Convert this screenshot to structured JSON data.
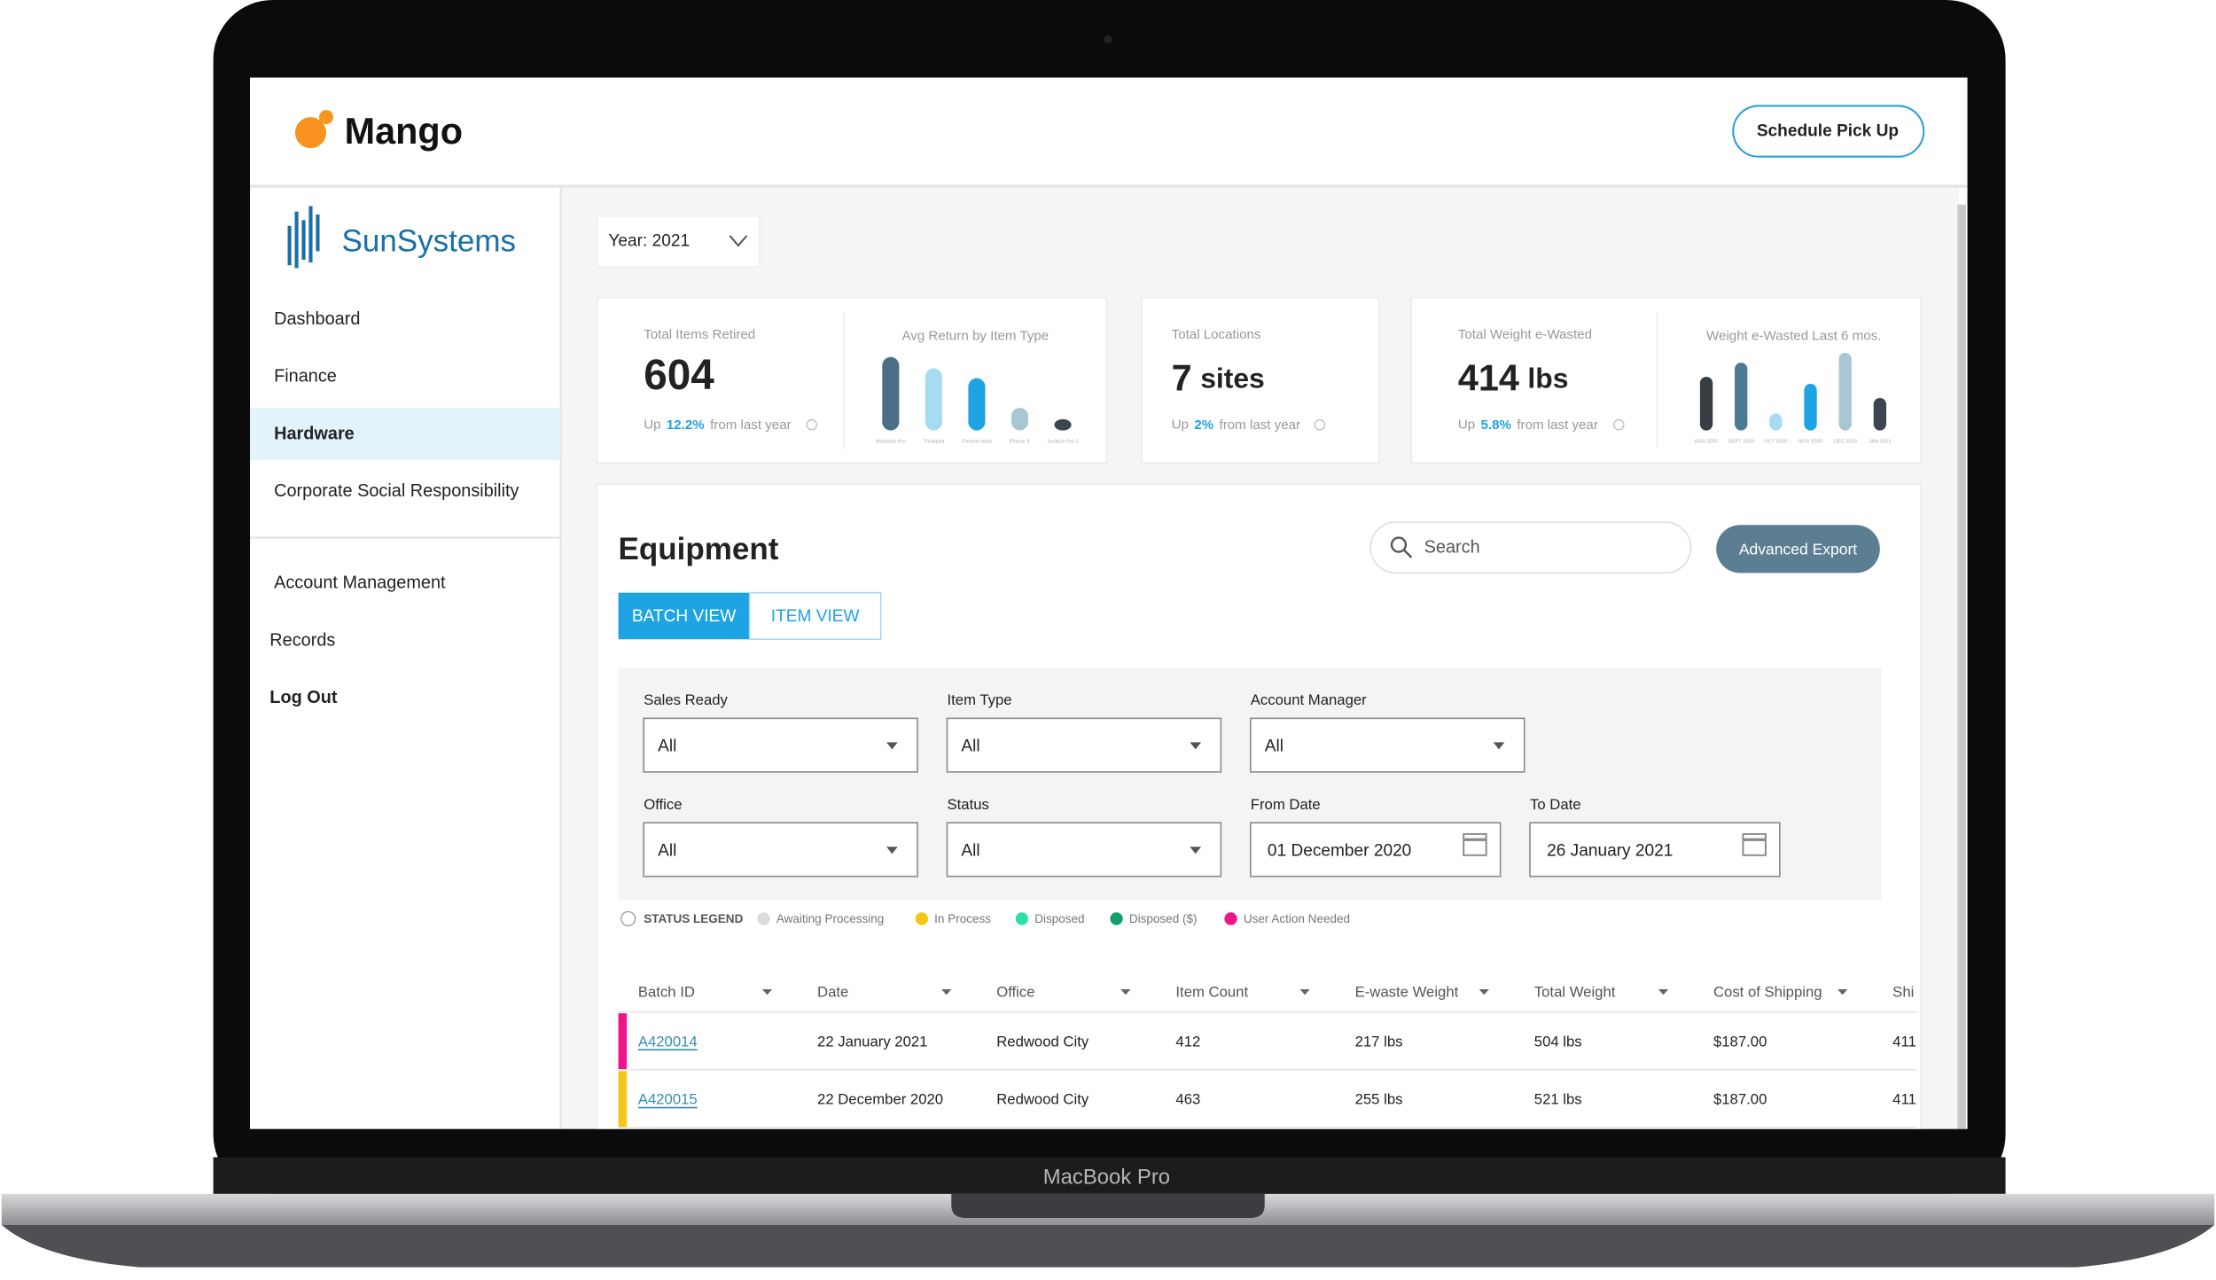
{
  "device": {
    "label": "MacBook Pro"
  },
  "header": {
    "brand": "Mango",
    "button": "Schedule Pick Up"
  },
  "sidebar": {
    "logo": "SunSystems",
    "nav": [
      "Dashboard",
      "Finance",
      "Hardware",
      "Corporate Social Responsibility"
    ],
    "nav2": [
      "Account Management",
      "Records",
      "Log Out"
    ]
  },
  "year_select": "Year: 2021",
  "stats": [
    {
      "label": "Total Items Retired",
      "value": 604,
      "change_prefix": "Up",
      "change": "12.2%",
      "change_suffix": "from last year"
    },
    {
      "label": "Total Locations",
      "value": 7,
      "unit": "sites",
      "change_prefix": "Up",
      "change": "2%",
      "change_suffix": "from last year"
    },
    {
      "label": "Total Weight e-Wasted",
      "value": 414,
      "unit": "lbs",
      "change_prefix": "Up",
      "change": "5.8%",
      "change_suffix": "from last year"
    }
  ],
  "mini_charts": [
    {
      "title": "Avg Return by Item Type",
      "categories": [
        "Macbook Pro",
        "Thinkpad",
        "Chrome book",
        "iPhone X",
        "Surface Pro 3"
      ],
      "values": [
        52,
        44,
        37,
        16,
        8
      ],
      "colors": [
        "#4a6f86",
        "#a6dcf2",
        "#1ea3e3",
        "#a9c6d3",
        "#3b4650"
      ]
    },
    {
      "title": "Weight e-Wasted Last 6 mos.",
      "categories": [
        "AUG 2020",
        "SEPT 2020",
        "OCT 2020",
        "NOV 2020",
        "DEC 2020",
        "JAN 2021"
      ],
      "values": [
        38,
        48,
        12,
        33,
        55,
        23
      ],
      "colors": [
        "#363d43",
        "#4c7a92",
        "#a6dcf2",
        "#1ea3e3",
        "#a9c6d3",
        "#3b4650"
      ]
    }
  ],
  "equipment": {
    "title": "Equipment",
    "search": "Search",
    "export": "Advanced Export",
    "tabs": [
      "BATCH VIEW",
      "ITEM VIEW"
    ],
    "filters": [
      {
        "label": "Sales Ready",
        "value": "All"
      },
      {
        "label": "Item Type",
        "value": "All"
      },
      {
        "label": "Account Manager",
        "value": "All"
      },
      {
        "label": "Office",
        "value": "All"
      },
      {
        "label": "Status",
        "value": "All"
      },
      {
        "label": "From Date",
        "value": "01 December 2020"
      },
      {
        "label": "To Date",
        "value": "26 January 2021"
      }
    ],
    "legend_title": "STATUS LEGEND",
    "legend": [
      {
        "name": "Awaiting Processing",
        "color": "#dcdcdc"
      },
      {
        "name": "In Process",
        "color": "#f5c518"
      },
      {
        "name": "Disposed",
        "color": "#2ee0a8"
      },
      {
        "name": "Disposed ($)",
        "color": "#12a06a"
      },
      {
        "name": "User Action Needed",
        "color": "#f0148c"
      }
    ],
    "columns": [
      "Batch ID",
      "Date",
      "Office",
      "Item Count",
      "E-waste Weight",
      "Total Weight",
      "Cost of Shipping",
      "Shi"
    ],
    "rows": [
      {
        "color": "#f0148c",
        "cells": [
          "A420014",
          "22 January 2021",
          "Redwood City",
          "412",
          "217 lbs",
          "504 lbs",
          "$187.00",
          "411"
        ]
      },
      {
        "color": "#f5c518",
        "cells": [
          "A420015",
          "22 December 2020",
          "Redwood City",
          "463",
          "255 lbs",
          "521 lbs",
          "$187.00",
          "411"
        ]
      }
    ]
  }
}
